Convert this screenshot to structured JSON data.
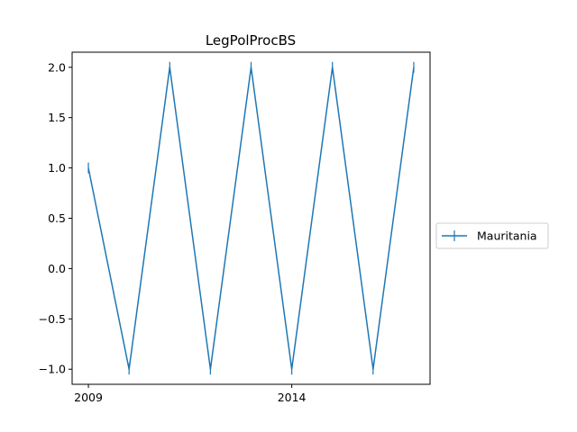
{
  "chart_data": {
    "type": "line",
    "title": "LegPolProcBS",
    "xlabel": "",
    "ylabel": "",
    "x": [
      2009,
      2010,
      2011,
      2012,
      2013,
      2014,
      2015,
      2016,
      2017
    ],
    "series": [
      {
        "name": "Mauritania",
        "color": "#1f77b4",
        "marker": "vline",
        "values": [
          1.0,
          -1.0,
          2.0,
          -1.0,
          2.0,
          -1.0,
          2.0,
          -1.0,
          2.0
        ]
      }
    ],
    "xlim": [
      2008.6,
      2017.4
    ],
    "ylim": [
      -1.15,
      2.15
    ],
    "x_ticks": [
      2009,
      2014
    ],
    "x_tick_labels": [
      "2009",
      "2014"
    ],
    "y_ticks": [
      -1.0,
      -0.5,
      0.0,
      0.5,
      1.0,
      1.5,
      2.0
    ],
    "y_tick_labels": [
      "−1.0",
      "−0.5",
      "0.0",
      "0.5",
      "1.0",
      "1.5",
      "2.0"
    ],
    "grid": false,
    "legend_position": "outside-right"
  }
}
